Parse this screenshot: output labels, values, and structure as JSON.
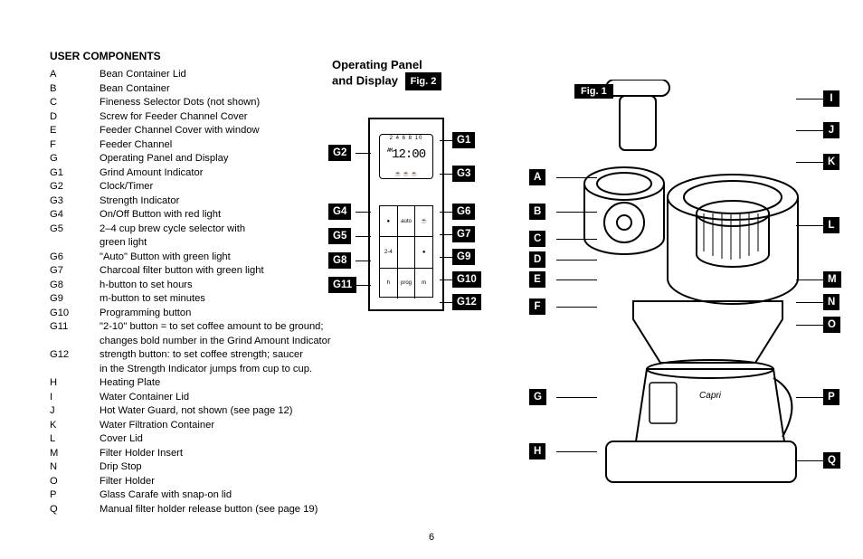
{
  "title": "USER COMPONENTS",
  "components": [
    {
      "key": "A",
      "desc": "Bean Container Lid"
    },
    {
      "key": "B",
      "desc": "Bean Container"
    },
    {
      "key": "C",
      "desc": "Fineness Selector Dots (not shown)"
    },
    {
      "key": "D",
      "desc": "Screw for Feeder Channel Cover"
    },
    {
      "key": "E",
      "desc": "Feeder Channel Cover with window"
    },
    {
      "key": "F",
      "desc": "Feeder Channel"
    },
    {
      "key": "G",
      "desc": "Operating Panel and Display"
    },
    {
      "key": "G1",
      "desc": "Grind Amount Indicator"
    },
    {
      "key": "G2",
      "desc": "Clock/Timer"
    },
    {
      "key": "G3",
      "desc": "Strength Indicator"
    },
    {
      "key": "G4",
      "desc": "On/Off Button with red light"
    },
    {
      "key": "G5",
      "desc": "2–4 cup brew cycle selector with",
      "cont": "green light"
    },
    {
      "key": "G6",
      "desc": "\"Auto\" Button with green light"
    },
    {
      "key": "G7",
      "desc": "Charcoal filter button with green light"
    },
    {
      "key": "G8",
      "desc": "h-button to set hours"
    },
    {
      "key": "G9",
      "desc": "m-button to set minutes"
    },
    {
      "key": "G10",
      "desc": "Programming button"
    },
    {
      "key": "G11",
      "desc": "\"2-10\" button = to set coffee amount to be ground;",
      "cont": "changes bold number in the Grind Amount Indicator"
    },
    {
      "key": "G12",
      "desc": "strength button: to set coffee strength; saucer",
      "cont": "in the Strength Indicator jumps from cup to cup."
    },
    {
      "key": "H",
      "desc": "Heating Plate"
    },
    {
      "key": "I",
      "desc": "Water Container Lid"
    },
    {
      "key": "J",
      "desc": "Hot Water Guard, not shown (see page 12)"
    },
    {
      "key": "K",
      "desc": "Water Filtration Container"
    },
    {
      "key": "L",
      "desc": "Cover Lid"
    },
    {
      "key": "M",
      "desc": "Filter Holder Insert"
    },
    {
      "key": "N",
      "desc": "Drip Stop"
    },
    {
      "key": "O",
      "desc": "Filter Holder"
    },
    {
      "key": "P",
      "desc": "Glass Carafe with snap-on lid"
    },
    {
      "key": "Q",
      "desc": "Manual filter holder release button (see page 19)"
    }
  ],
  "panel_title_line1": "Operating Panel",
  "panel_title_line2": "and Display",
  "fig2_label": "Fig. 2",
  "fig1_label": "Fig. 1",
  "lcd": {
    "grind_nums": "2 4 6 8 10",
    "time": "12:00",
    "ampm": "AM",
    "cups": "☕ ☕ ☕"
  },
  "buttons": {
    "r1c1": "●",
    "r1c2": "auto",
    "r1c3": "☕",
    "r2c1": "2-4",
    "r2c2": "",
    "r2c3": "●",
    "r3c1": "h",
    "r3c2": "prog",
    "r3c3": "m",
    "r4c1": "2-10",
    "r4c2": "",
    "r4c3": "☕"
  },
  "g_callouts_left": [
    "G2",
    "G4",
    "G5",
    "G8",
    "G11"
  ],
  "g_callouts_right": [
    "G1",
    "G3",
    "G6",
    "G7",
    "G9",
    "G10",
    "G12"
  ],
  "fig1_left": [
    "A",
    "B",
    "C",
    "D",
    "E",
    "F",
    "G",
    "H"
  ],
  "fig1_right": [
    "I",
    "J",
    "K",
    "L",
    "M",
    "N",
    "O",
    "P",
    "Q"
  ],
  "page_number": "6",
  "colors": {
    "bg": "#ffffff",
    "fg": "#000000"
  }
}
